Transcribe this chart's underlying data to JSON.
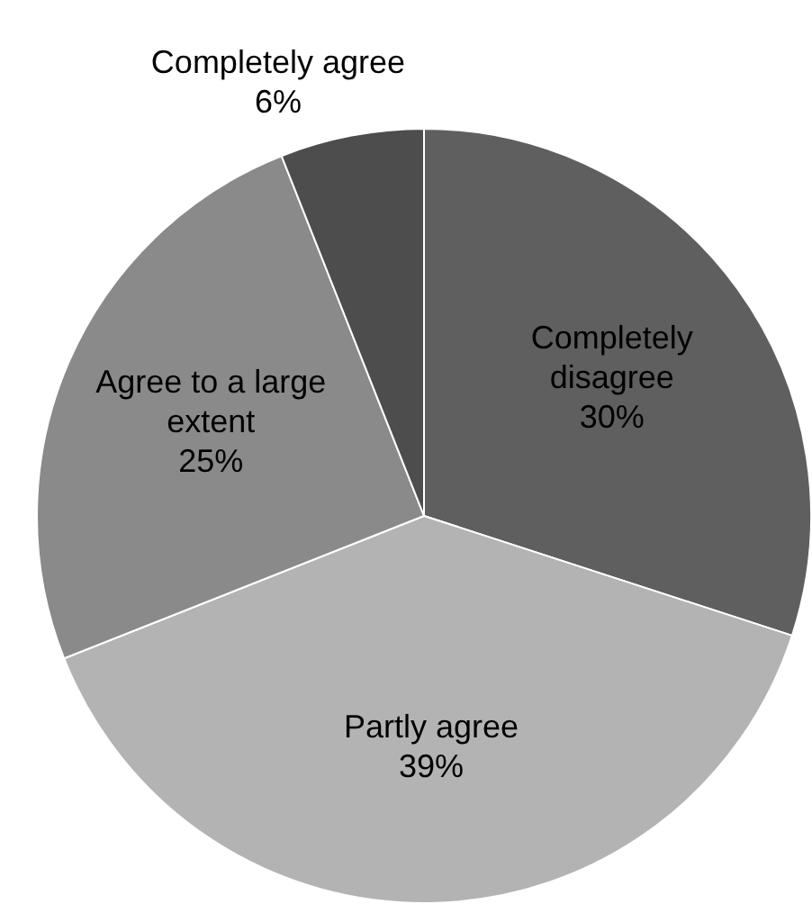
{
  "chart_data": {
    "type": "pie",
    "categories": [
      "Completely disagree",
      "Partly agree",
      "Agree to a large extent",
      "Completely agree"
    ],
    "values": [
      30,
      39,
      25,
      6
    ],
    "value_labels": [
      "30%",
      "39%",
      "25%",
      "6%"
    ],
    "colors": [
      "#5f5f5f",
      "#b3b3b3",
      "#8a8a8a",
      "#4d4d4d"
    ],
    "legend": false
  }
}
